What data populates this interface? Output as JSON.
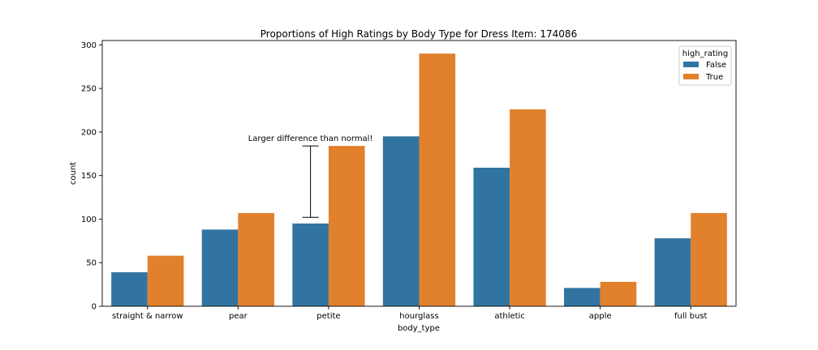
{
  "chart_data": {
    "type": "bar",
    "title": "Proportions of High Ratings by Body Type for Dress Item: 174086",
    "xlabel": "body_type",
    "ylabel": "count",
    "categories": [
      "straight & narrow",
      "pear",
      "petite",
      "hourglass",
      "athletic",
      "apple",
      "full bust"
    ],
    "series": [
      {
        "name": "False",
        "color": "#3274a1",
        "values": [
          39,
          88,
          95,
          195,
          159,
          21,
          78
        ]
      },
      {
        "name": "True",
        "color": "#e1812c",
        "values": [
          58,
          107,
          184,
          290,
          226,
          28,
          107
        ]
      }
    ],
    "ylim": [
      0,
      305
    ],
    "yticks": [
      0,
      50,
      100,
      150,
      200,
      250,
      300
    ],
    "grid": false,
    "legend": {
      "title": "high_rating",
      "position": "top-right"
    },
    "annotation": {
      "text": "Larger difference than normal!",
      "category": "petite",
      "from": 102,
      "to": 184
    }
  }
}
